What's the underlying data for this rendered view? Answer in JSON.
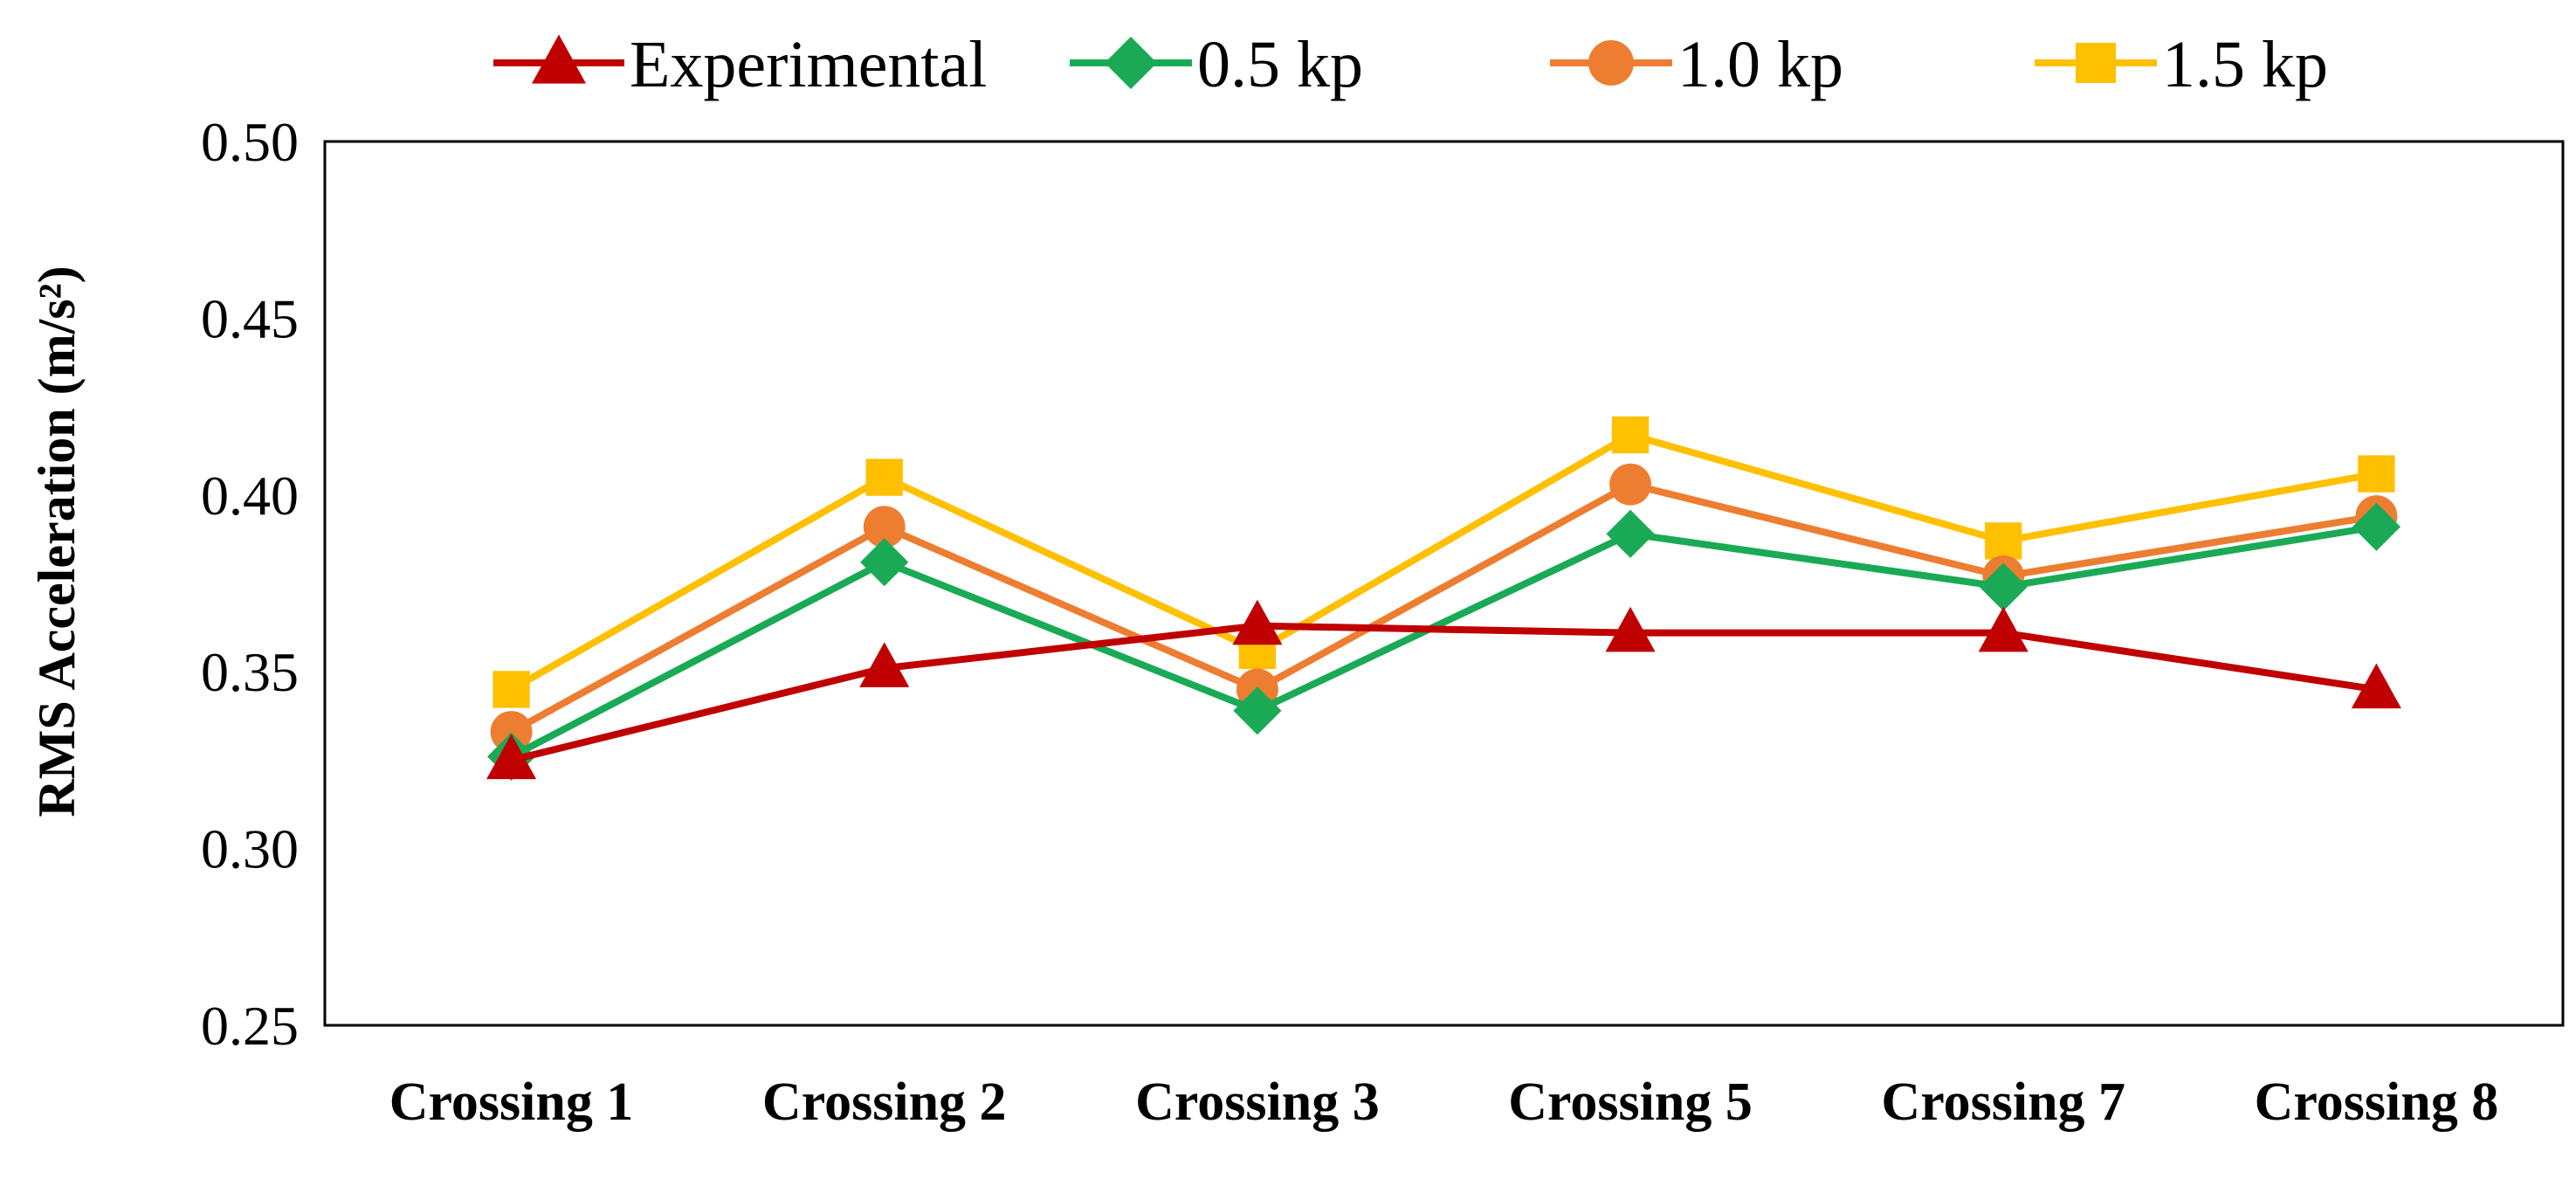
{
  "chart_data": {
    "type": "line",
    "title": "",
    "xlabel": "",
    "ylabel": "RMS Acceleration (m/s²)",
    "ylim": [
      0.25,
      0.5
    ],
    "yticks": [
      "0.25",
      "0.30",
      "0.35",
      "0.40",
      "0.45",
      "0.50"
    ],
    "grid": false,
    "legend_position": "top",
    "categories": [
      "Crossing 1",
      "Crossing 2",
      "Crossing 3",
      "Crossing 5",
      "Crossing 7",
      "Crossing 8"
    ],
    "series": [
      {
        "name": "Experimental",
        "marker": "triangle",
        "color": "#C00000",
        "values": [
          0.325,
          0.351,
          0.363,
          0.361,
          0.361,
          0.345
        ]
      },
      {
        "name": "0.5 kp",
        "marker": "diamond",
        "color": "#1AAA55",
        "values": [
          0.326,
          0.381,
          0.339,
          0.389,
          0.374,
          0.391
        ]
      },
      {
        "name": "1.0 kp",
        "marker": "circle",
        "color": "#ED7D31",
        "values": [
          0.333,
          0.391,
          0.345,
          0.403,
          0.377,
          0.394
        ]
      },
      {
        "name": "1.5 kp",
        "marker": "square",
        "color": "#FFC000",
        "values": [
          0.345,
          0.405,
          0.356,
          0.417,
          0.387,
          0.406
        ]
      }
    ]
  }
}
